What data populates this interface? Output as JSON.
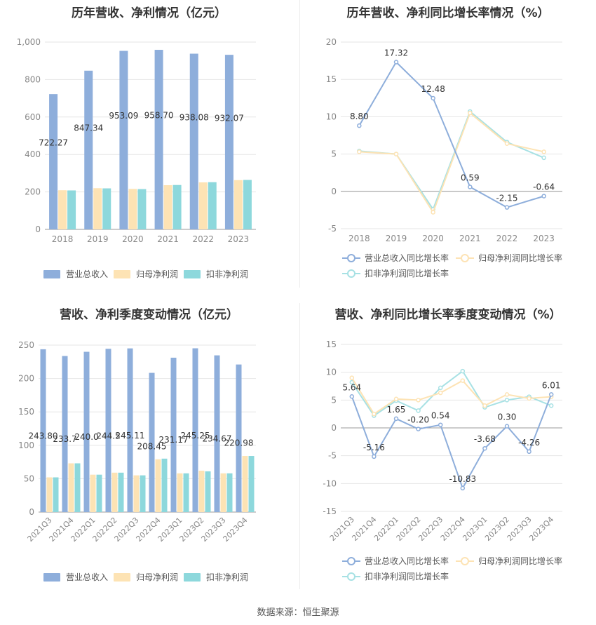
{
  "colors": {
    "revenue": "#8eaedb",
    "net_profit": "#fde3b4",
    "deducted_profit": "#8dd8dc",
    "revenue_line": "#8eaedb",
    "net_line": "#fde3b4",
    "deducted_line": "#a7e1e4",
    "axis_text": "#888888",
    "grid": "#e6e6e6"
  },
  "source_text": "数据来源：恒生聚源",
  "legend": {
    "revenue": "营业总收入",
    "net_profit": "归母净利润",
    "deducted_profit": "扣非净利润",
    "revenue_growth": "营业总收入同比增长率",
    "net_growth": "归母净利润同比增长率",
    "deducted_growth": "扣非净利润同比增长率"
  },
  "chart_data": [
    {
      "type": "bar",
      "title": "历年营收、净利情况（亿元）",
      "categories": [
        "2018",
        "2019",
        "2020",
        "2021",
        "2022",
        "2023"
      ],
      "ylim": [
        0,
        1000
      ],
      "yticks": [
        "0",
        "200",
        "400",
        "600",
        "800",
        "1,000"
      ],
      "series": [
        {
          "name": "营业总收入",
          "values": [
            722.27,
            847.34,
            953.09,
            958.7,
            938.08,
            932.07
          ],
          "labels": [
            "722.27",
            "847.34",
            "953.09",
            "958.70",
            "938.08",
            "932.07"
          ]
        },
        {
          "name": "归母净利润",
          "values": [
            209,
            220,
            216,
            236,
            251,
            263
          ]
        },
        {
          "name": "扣非净利润",
          "values": [
            208,
            219,
            215,
            237,
            252,
            264
          ]
        }
      ],
      "legend_position": "bottom"
    },
    {
      "type": "line",
      "title": "历年营收、净利同比增长率情况（%）",
      "categories": [
        "2018",
        "2019",
        "2020",
        "2021",
        "2022",
        "2023"
      ],
      "ylim": [
        -5,
        20
      ],
      "yticks": [
        "-5",
        "0",
        "5",
        "10",
        "15",
        "20"
      ],
      "series": [
        {
          "name": "营业总收入同比增长率",
          "values": [
            8.8,
            17.32,
            12.48,
            0.59,
            -2.15,
            -0.64
          ],
          "labels": [
            "8.80",
            "17.32",
            "12.48",
            "0.59",
            "-2.15",
            "-0.64"
          ]
        },
        {
          "name": "归母净利润同比增长率",
          "values": [
            5.3,
            5.0,
            -2.8,
            10.5,
            6.4,
            5.3
          ]
        },
        {
          "name": "扣非净利润同比增长率",
          "values": [
            5.4,
            5.0,
            -2.4,
            10.7,
            6.6,
            4.5
          ]
        }
      ],
      "legend_position": "bottom"
    },
    {
      "type": "bar",
      "title": "营收、净利季度变动情况（亿元）",
      "categories": [
        "2021Q3",
        "2021Q4",
        "2022Q1",
        "2022Q2",
        "2022Q3",
        "2022Q4",
        "2023Q1",
        "2023Q2",
        "2023Q3",
        "2023Q4"
      ],
      "ylim": [
        0,
        250
      ],
      "yticks": [
        "0",
        "50",
        "100",
        "150",
        "200",
        "250"
      ],
      "series": [
        {
          "name": "营业总收入",
          "values": [
            243.8,
            233.7,
            240.0,
            244.5,
            245.11,
            208.45,
            231.17,
            245.25,
            234.67,
            220.98
          ],
          "labels": [
            "243.80",
            "233.7",
            "240.0",
            "244.5",
            "245.11",
            "208.45",
            "231.17",
            "245.25",
            "234.67",
            "220.98"
          ]
        },
        {
          "name": "归母净利润",
          "values": [
            52,
            73,
            56,
            59,
            55,
            79,
            58,
            62,
            58,
            84
          ]
        },
        {
          "name": "扣非净利润",
          "values": [
            52,
            73,
            56,
            59,
            55,
            80,
            58,
            61,
            58,
            84
          ]
        }
      ],
      "legend_position": "bottom"
    },
    {
      "type": "line",
      "title": "营收、净利同比增长率季度变动情况（%）",
      "categories": [
        "2021Q3",
        "2021Q4",
        "2022Q1",
        "2022Q2",
        "2022Q3",
        "2022Q4",
        "2023Q1",
        "2023Q2",
        "2023Q3",
        "2023Q4"
      ],
      "ylim": [
        -15,
        15
      ],
      "yticks": [
        "-15",
        "-10",
        "-5",
        "0",
        "5",
        "10",
        "15"
      ],
      "series": [
        {
          "name": "营业总收入同比增长率",
          "values": [
            5.64,
            -5.16,
            1.65,
            -0.2,
            0.54,
            -10.83,
            -3.68,
            0.3,
            -4.26,
            6.01
          ],
          "labels": [
            "5.64",
            "-5.16",
            "1.65",
            "-0.20",
            "0.54",
            "-10.83",
            "-3.68",
            "0.30",
            "-4.26",
            "6.01"
          ]
        },
        {
          "name": "归母净利润同比增长率",
          "values": [
            9.0,
            2.5,
            5.2,
            5.0,
            6.3,
            8.5,
            4.0,
            6.0,
            5.3,
            5.6
          ]
        },
        {
          "name": "扣非净利润同比增长率",
          "values": [
            8.2,
            2.2,
            4.9,
            3.1,
            7.2,
            10.2,
            3.7,
            5.0,
            5.6,
            4.0
          ]
        }
      ],
      "legend_position": "bottom"
    }
  ]
}
